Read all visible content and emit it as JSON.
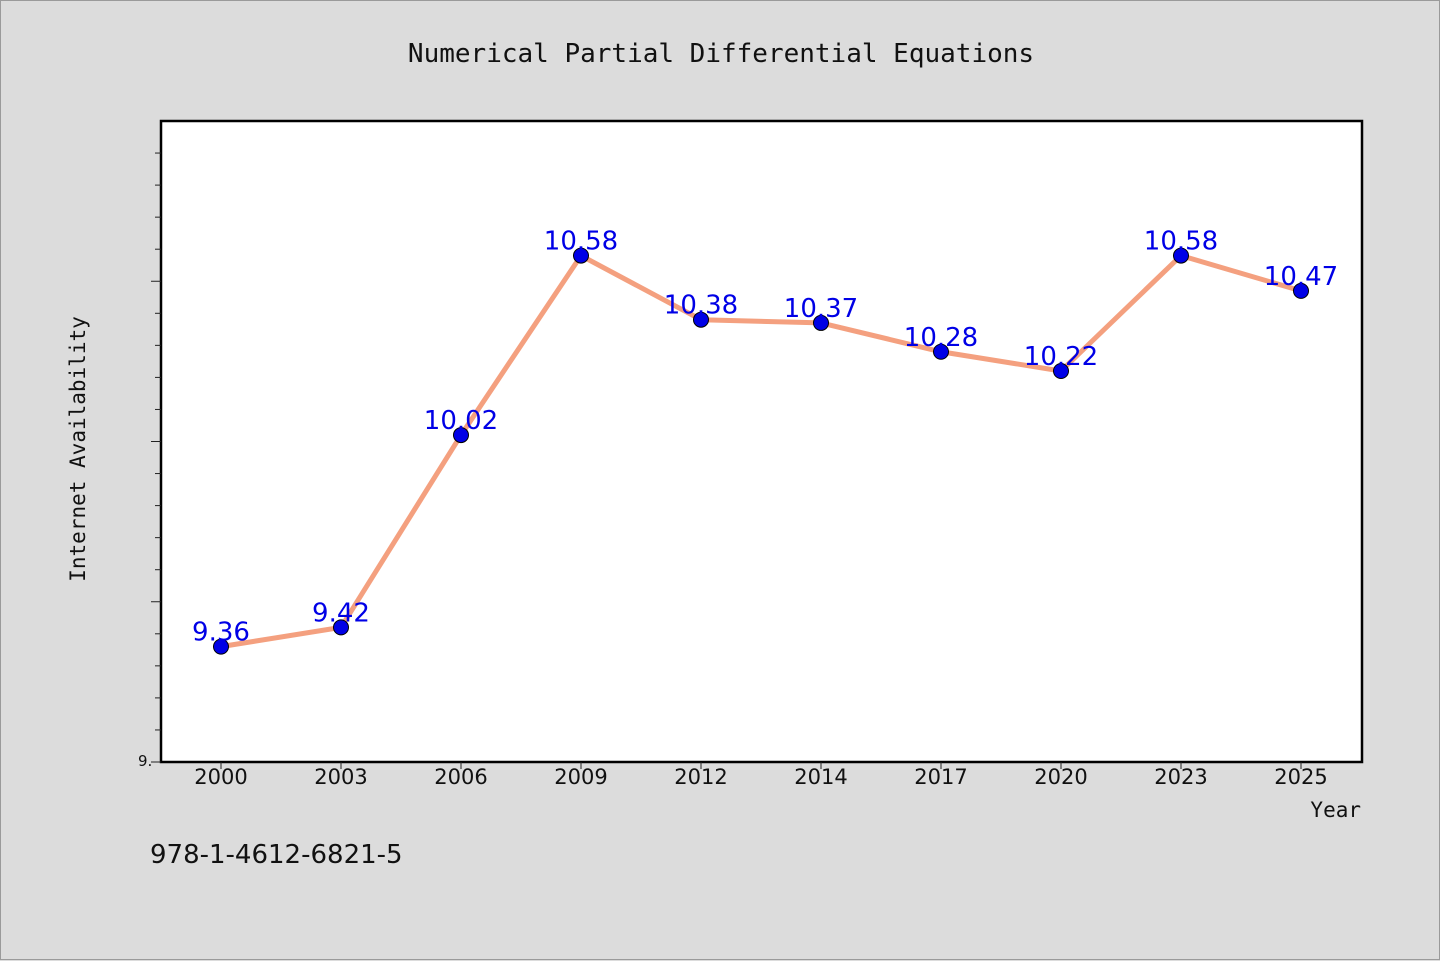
{
  "chart_data": {
    "type": "line",
    "title": "Numerical Partial Differential Equations",
    "xlabel": "Year",
    "ylabel": "Internet Availability",
    "categories": [
      "2000",
      "2003",
      "2006",
      "2009",
      "2012",
      "2014",
      "2017",
      "2020",
      "2023",
      "2025"
    ],
    "series": [
      {
        "values": [
          9.36,
          9.42,
          10.02,
          10.58,
          10.38,
          10.37,
          10.28,
          10.22,
          10.58,
          10.47
        ]
      }
    ],
    "ylim": [
      9.0,
      11.0
    ],
    "y_min_tick_label": "9.",
    "grid": false,
    "line_color": "#f4a07f",
    "marker_color": "#0000e6",
    "label_color": "#0000e6"
  },
  "footnote": "978-1-4612-6821-5"
}
